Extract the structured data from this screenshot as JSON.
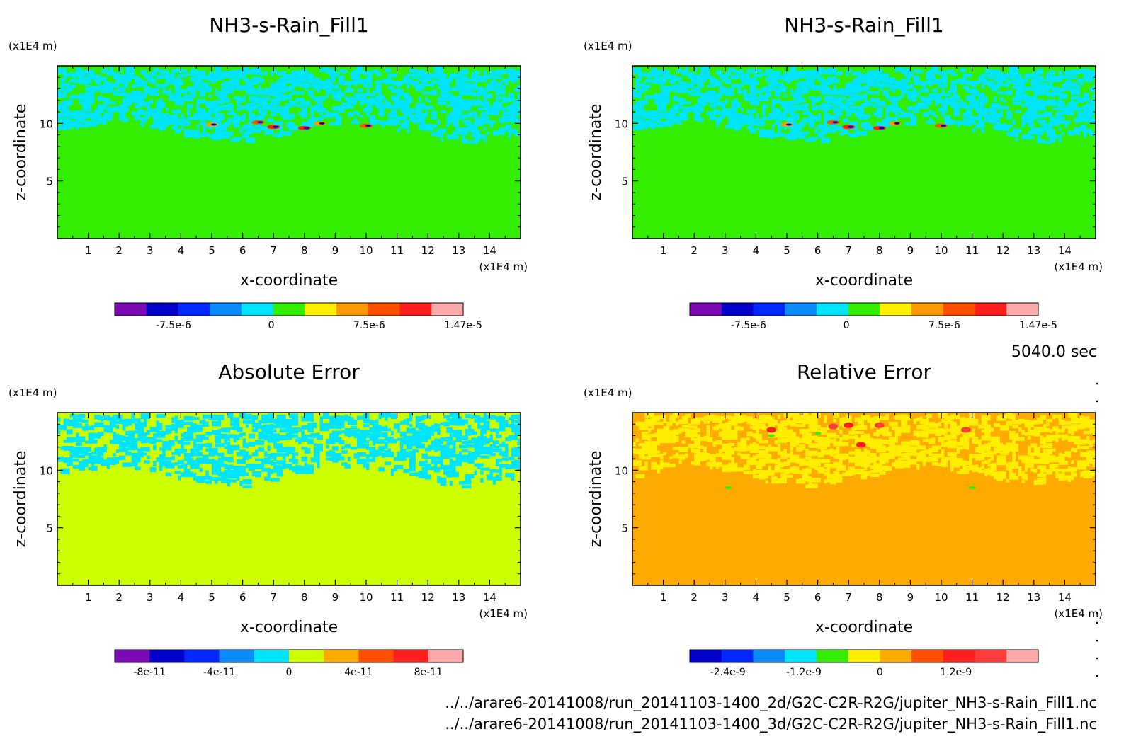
{
  "colors": {
    "axis": "#000000",
    "background": "#ffffff"
  },
  "chart_data": [
    {
      "type": "heatmap",
      "id": "top-left",
      "title": "NH3-s-Rain_Fill1",
      "xlabel": "x-coordinate",
      "ylabel": "z-coordinate",
      "x_unit": "(x1E4 m)",
      "y_unit": "(x1E4 m)",
      "xlim": [
        0,
        15
      ],
      "ylim": [
        0,
        15
      ],
      "x_ticks": [
        1,
        2,
        3,
        4,
        5,
        6,
        7,
        8,
        9,
        10,
        11,
        12,
        13,
        14
      ],
      "y_ticks": [
        5,
        10
      ],
      "background_color": "#33ee00",
      "band_color": "#00e5ff",
      "band_zmin": 7.8,
      "band_zmax": 14.5,
      "colorbar": {
        "colors": [
          "#7b0ab4",
          "#0000c8",
          "#0028ff",
          "#0a8cff",
          "#00e5ff",
          "#33ee00",
          "#ffee00",
          "#ff9900",
          "#ff5000",
          "#ff1e1e",
          "#ffaaaa"
        ],
        "tick_labels": [
          "-7.5e-6",
          "0",
          "7.5e-6",
          "1.47e-5"
        ],
        "tick_values": [
          -7.5e-06,
          0,
          7.5e-06,
          1.47e-05
        ],
        "range": [
          -1.2e-05,
          1.47e-05
        ]
      }
    },
    {
      "type": "heatmap",
      "id": "top-right",
      "title": "NH3-s-Rain_Fill1",
      "xlabel": "x-coordinate",
      "ylabel": "z-coordinate",
      "x_unit": "(x1E4 m)",
      "y_unit": "(x1E4 m)",
      "xlim": [
        0,
        15
      ],
      "ylim": [
        0,
        15
      ],
      "x_ticks": [
        1,
        2,
        3,
        4,
        5,
        6,
        7,
        8,
        9,
        10,
        11,
        12,
        13,
        14
      ],
      "y_ticks": [
        5,
        10
      ],
      "background_color": "#33ee00",
      "band_color": "#00e5ff",
      "band_zmin": 7.8,
      "band_zmax": 14.5,
      "colorbar": {
        "colors": [
          "#7b0ab4",
          "#0000c8",
          "#0028ff",
          "#0a8cff",
          "#00e5ff",
          "#33ee00",
          "#ffee00",
          "#ff9900",
          "#ff5000",
          "#ff1e1e",
          "#ffaaaa"
        ],
        "tick_labels": [
          "-7.5e-6",
          "0",
          "7.5e-6",
          "1.47e-5"
        ],
        "tick_values": [
          -7.5e-06,
          0,
          7.5e-06,
          1.47e-05
        ],
        "range": [
          -1.2e-05,
          1.47e-05
        ]
      }
    },
    {
      "type": "heatmap",
      "id": "bottom-left",
      "title": "Absolute Error",
      "xlabel": "x-coordinate",
      "ylabel": "z-coordinate",
      "x_unit": "(x1E4 m)",
      "y_unit": "(x1E4 m)",
      "xlim": [
        0,
        15
      ],
      "ylim": [
        0,
        15
      ],
      "x_ticks": [
        1,
        2,
        3,
        4,
        5,
        6,
        7,
        8,
        9,
        10,
        11,
        12,
        13,
        14
      ],
      "y_ticks": [
        5,
        10
      ],
      "background_color": "#ccff00",
      "band_color": "#00e5ff",
      "band_zmin": 8.0,
      "band_zmax": 14.6,
      "colorbar": {
        "colors": [
          "#7b0ab4",
          "#0000c8",
          "#0028ff",
          "#0a8cff",
          "#00e5ff",
          "#ccff00",
          "#ffaa00",
          "#ff5000",
          "#ff1e1e",
          "#ffaaaa"
        ],
        "tick_labels": [
          "-8e-11",
          "-4e-11",
          "0",
          "4e-11",
          "8e-11"
        ],
        "tick_values": [
          -8e-11,
          -4e-11,
          0,
          4e-11,
          8e-11
        ],
        "range": [
          -1e-10,
          1e-10
        ]
      }
    },
    {
      "type": "heatmap",
      "id": "bottom-right",
      "title": "Relative Error",
      "xlabel": "x-coordinate",
      "ylabel": "z-coordinate",
      "x_unit": "(x1E4 m)",
      "y_unit": "(x1E4 m)",
      "xlim": [
        0,
        15
      ],
      "ylim": [
        0,
        15
      ],
      "x_ticks": [
        1,
        2,
        3,
        4,
        5,
        6,
        7,
        8,
        9,
        10,
        11,
        12,
        13,
        14
      ],
      "y_ticks": [
        5,
        10
      ],
      "background_color": "#ffaa00",
      "band_color": "#ffee00",
      "band_zmin": 8.0,
      "band_zmax": 14.6,
      "colorbar": {
        "colors": [
          "#0000c8",
          "#0028ff",
          "#0a8cff",
          "#00e5ff",
          "#33ee00",
          "#ffee00",
          "#ffaa00",
          "#ff5000",
          "#ff1e1e",
          "#ff3c3c",
          "#ffaaaa"
        ],
        "tick_labels": [
          "-2.4e-9",
          "-1.2e-9",
          "0",
          "1.2e-9"
        ],
        "tick_values": [
          -2.4e-09,
          -1.2e-09,
          0,
          1.2e-09
        ],
        "range": [
          -3e-09,
          2.5e-09
        ]
      }
    }
  ],
  "time_label": "5040.0 sec",
  "files": [
    "../../arare6-20141008/run_20141103-1400_2d/G2C-C2R-R2G/jupiter_NH3-s-Rain_Fill1.nc",
    "../../arare6-20141008/run_20141103-1400_3d/G2C-C2R-R2G/jupiter_NH3-s-Rain_Fill1.nc"
  ]
}
